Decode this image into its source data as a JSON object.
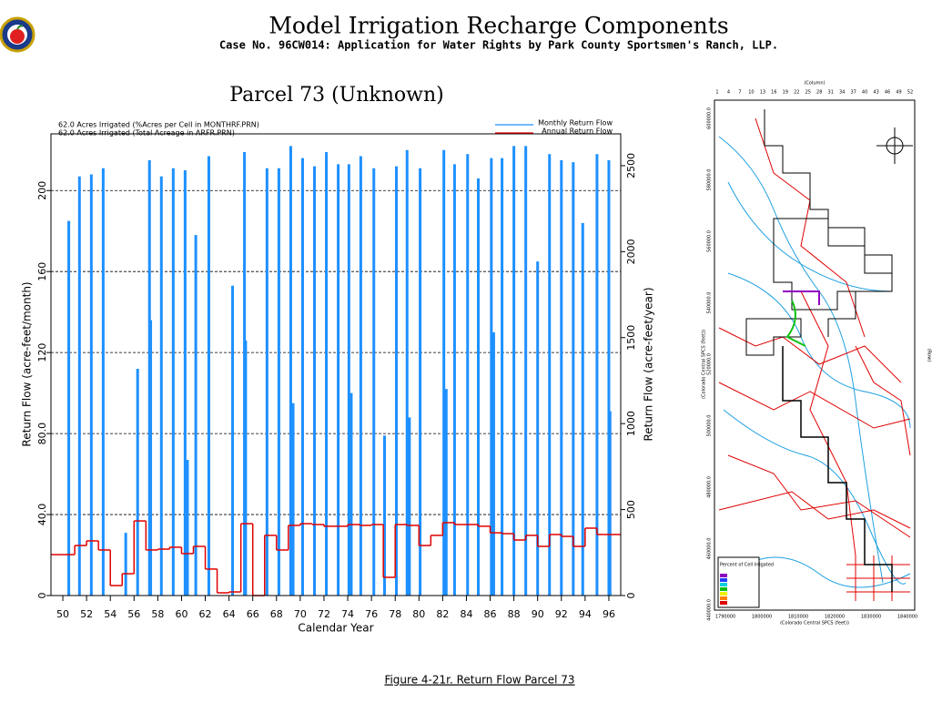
{
  "header": {
    "title": "Model Irrigation Recharge Components",
    "subtitle": "Case No. 96CW014: Application for Water Rights by Park County Sportsmen's Ranch, LLP."
  },
  "chart_data": {
    "type": "impulse-step",
    "title": "Parcel 73 (Unknown)",
    "annotations": [
      "62.0 Acres Irrigated (%Acres per Cell in MONTHRF.PRN)",
      "62.0 Acres Irrigated (Total Acreage in ARFR.PRN)"
    ],
    "x_label": "Calendar Year",
    "y_label": "Return Flow (acre-feet/month)",
    "y2_label": "Return Flow (acre-feet/year)",
    "xlim": [
      49,
      97
    ],
    "xticks": [
      50,
      52,
      54,
      56,
      58,
      60,
      62,
      64,
      66,
      68,
      70,
      72,
      74,
      76,
      78,
      80,
      82,
      84,
      86,
      88,
      90,
      92,
      94,
      96
    ],
    "ylim": [
      0,
      228
    ],
    "yticks": [
      0,
      {
        "value": 40,
        "label": "40.0"
      },
      {
        "value": 80,
        "label": "80.0"
      },
      120,
      160,
      200
    ],
    "y2lim": [
      0,
      2685
    ],
    "y2ticks": [
      0,
      500,
      1000,
      1500,
      2000,
      2500
    ],
    "grid": true,
    "legend": "upper right",
    "series": [
      {
        "name": "Monthly Return Flow",
        "color": "#1e90ff",
        "style": "impulse",
        "x": [
          50.5,
          51.4,
          52.4,
          53.4,
          55.3,
          56.3,
          57.3,
          57.4,
          58.3,
          59.3,
          60.3,
          60.5,
          61.2,
          62.3,
          64.3,
          65.3,
          65.4,
          67.2,
          68.2,
          69.2,
          69.4,
          70.2,
          71.2,
          72.2,
          73.2,
          74.1,
          74.3,
          75.1,
          76.2,
          77.1,
          78.1,
          79.0,
          79.2,
          80.1,
          82.1,
          82.3,
          83.0,
          84.1,
          85.0,
          86.1,
          86.3,
          87.0,
          88.0,
          89.0,
          90.0,
          91.0,
          92.0,
          93.0,
          93.8,
          95.0,
          96.0,
          96.1
        ],
        "values": [
          185,
          207,
          208,
          211,
          31,
          112,
          215,
          136,
          207,
          211,
          210,
          67,
          178,
          217,
          153,
          219,
          126,
          211,
          211,
          222,
          95,
          216,
          212,
          219,
          213,
          213,
          100,
          217,
          211,
          79,
          212,
          220,
          88,
          211,
          220,
          102,
          213,
          218,
          206,
          216,
          130,
          216,
          222,
          222,
          165,
          218,
          215,
          214,
          184,
          218,
          215,
          91
        ]
      },
      {
        "name": "Annual Return Flow",
        "color": "#e00000",
        "style": "step",
        "axis": "y2",
        "x": [
          49,
          50,
          51,
          52,
          53,
          54,
          55,
          56,
          57,
          58,
          59,
          60,
          61,
          62,
          63,
          64,
          65,
          66,
          67,
          68,
          69,
          70,
          71,
          72,
          73,
          74,
          75,
          76,
          77,
          78,
          79,
          80,
          81,
          82,
          83,
          84,
          85,
          86,
          87,
          88,
          89,
          90,
          91,
          92,
          93,
          94,
          95,
          96
        ],
        "values": [
          238,
          238,
          291,
          318,
          265,
          58,
          127,
          434,
          265,
          270,
          281,
          244,
          286,
          154,
          16,
          21,
          418,
          0,
          350,
          265,
          408,
          418,
          413,
          403,
          403,
          413,
          408,
          413,
          106,
          413,
          408,
          291,
          350,
          424,
          413,
          413,
          403,
          365,
          360,
          323,
          350,
          286,
          355,
          344,
          286,
          392,
          355,
          355
        ]
      }
    ]
  },
  "map": {
    "column_label": "(Column)",
    "columns": [
      1,
      4,
      7,
      10,
      13,
      16,
      19,
      22,
      25,
      28,
      31,
      34,
      37,
      40,
      43,
      46,
      49,
      52
    ],
    "x_ticks": [
      "1790000",
      "1800000",
      "1810000",
      "1820000",
      "1830000",
      "1840000"
    ],
    "x_label": "(Colorado Central SPCS (feet))",
    "y_ticks": [
      "600000.0",
      "580000.0",
      "560000.0",
      "540000.0",
      "520000.0",
      "500000.0",
      "480000.0",
      "460000.0",
      "440000.0"
    ],
    "y_label": "(Colorado Central SPCS (feet))",
    "row_label": "(Row)",
    "legend_title": "Percent of Cell Irrigated"
  },
  "caption": "Figure 4-21r.  Return Flow Parcel 73"
}
